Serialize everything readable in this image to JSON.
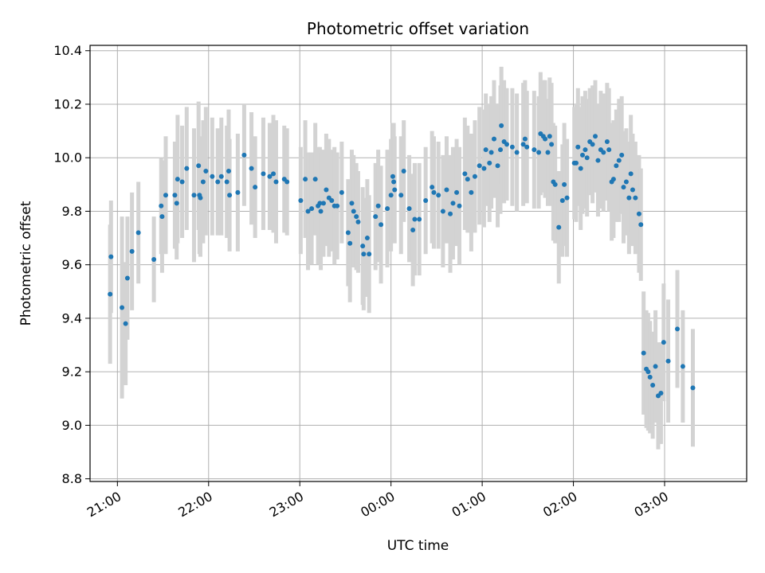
{
  "chart_data": {
    "type": "scatter",
    "title": "Photometric offset variation",
    "xlabel": "UTC time",
    "ylabel": "Photometric offset",
    "x_unit": "hours UTC (values past 24 are after midnight)",
    "xlim": [
      20.7,
      27.9
    ],
    "ylim": [
      8.79,
      10.42
    ],
    "x_ticks": [
      21,
      22,
      23,
      24,
      25,
      26,
      27
    ],
    "x_tick_labels": [
      "21:00",
      "22:00",
      "23:00",
      "00:00",
      "01:00",
      "02:00",
      "03:00"
    ],
    "y_ticks": [
      8.8,
      9.0,
      9.2,
      9.4,
      9.6,
      9.8,
      10.0,
      10.2,
      10.4
    ],
    "y_tick_labels": [
      "8.8",
      "9.0",
      "9.2",
      "9.4",
      "9.6",
      "9.8",
      "10.0",
      "10.2",
      "10.4"
    ],
    "grid": true,
    "marker_color": "#1f77b4",
    "errorbar_color": "#d3d3d3",
    "points": [
      [
        20.92,
        9.49,
        0.26
      ],
      [
        20.93,
        9.63,
        0.21
      ],
      [
        21.05,
        9.44,
        0.34
      ],
      [
        21.09,
        9.38,
        0.23
      ],
      [
        21.11,
        9.55,
        0.23
      ],
      [
        21.16,
        9.65,
        0.22
      ],
      [
        21.23,
        9.72,
        0.19
      ],
      [
        21.4,
        9.62,
        0.16
      ],
      [
        21.48,
        9.82,
        0.18
      ],
      [
        21.49,
        9.78,
        0.21
      ],
      [
        21.53,
        9.86,
        0.22
      ],
      [
        21.63,
        9.86,
        0.2
      ],
      [
        21.65,
        9.83,
        0.21
      ],
      [
        21.66,
        9.92,
        0.24
      ],
      [
        21.71,
        9.91,
        0.21
      ],
      [
        21.76,
        9.96,
        0.23
      ],
      [
        21.84,
        9.86,
        0.25
      ],
      [
        21.89,
        9.97,
        0.24
      ],
      [
        21.9,
        9.86,
        0.22
      ],
      [
        21.91,
        9.85,
        0.22
      ],
      [
        21.94,
        9.91,
        0.23
      ],
      [
        21.97,
        9.95,
        0.24
      ],
      [
        22.04,
        9.93,
        0.22
      ],
      [
        22.1,
        9.91,
        0.2
      ],
      [
        22.14,
        9.93,
        0.22
      ],
      [
        22.2,
        9.91,
        0.21
      ],
      [
        22.22,
        9.95,
        0.23
      ],
      [
        22.23,
        9.86,
        0.21
      ],
      [
        22.32,
        9.87,
        0.22
      ],
      [
        22.39,
        10.01,
        0.19
      ],
      [
        22.47,
        9.96,
        0.21
      ],
      [
        22.51,
        9.89,
        0.19
      ],
      [
        22.6,
        9.94,
        0.21
      ],
      [
        22.67,
        9.93,
        0.2
      ],
      [
        22.71,
        9.94,
        0.22
      ],
      [
        22.74,
        9.91,
        0.23
      ],
      [
        22.83,
        9.92,
        0.2
      ],
      [
        22.86,
        9.91,
        0.2
      ],
      [
        23.01,
        9.84,
        0.2
      ],
      [
        23.06,
        9.92,
        0.22
      ],
      [
        23.09,
        9.8,
        0.22
      ],
      [
        23.13,
        9.81,
        0.21
      ],
      [
        23.17,
        9.92,
        0.21
      ],
      [
        23.2,
        9.82,
        0.22
      ],
      [
        23.22,
        9.83,
        0.21
      ],
      [
        23.23,
        9.8,
        0.22
      ],
      [
        23.26,
        9.83,
        0.2
      ],
      [
        23.29,
        9.88,
        0.21
      ],
      [
        23.32,
        9.85,
        0.22
      ],
      [
        23.35,
        9.84,
        0.19
      ],
      [
        23.38,
        9.82,
        0.22
      ],
      [
        23.41,
        9.82,
        0.2
      ],
      [
        23.46,
        9.87,
        0.19
      ],
      [
        23.53,
        9.72,
        0.2
      ],
      [
        23.55,
        9.68,
        0.22
      ],
      [
        23.57,
        9.83,
        0.2
      ],
      [
        23.59,
        9.8,
        0.21
      ],
      [
        23.62,
        9.78,
        0.2
      ],
      [
        23.64,
        9.76,
        0.19
      ],
      [
        23.69,
        9.67,
        0.22
      ],
      [
        23.7,
        9.64,
        0.21
      ],
      [
        23.74,
        9.7,
        0.22
      ],
      [
        23.76,
        9.64,
        0.22
      ],
      [
        23.83,
        9.78,
        0.2
      ],
      [
        23.86,
        9.82,
        0.21
      ],
      [
        23.89,
        9.75,
        0.22
      ],
      [
        23.96,
        9.81,
        0.22
      ],
      [
        24.0,
        9.86,
        0.21
      ],
      [
        24.02,
        9.93,
        0.2
      ],
      [
        24.03,
        9.91,
        0.22
      ],
      [
        24.04,
        9.88,
        0.2
      ],
      [
        24.11,
        9.86,
        0.22
      ],
      [
        24.14,
        9.95,
        0.19
      ],
      [
        24.2,
        9.81,
        0.2
      ],
      [
        24.24,
        9.73,
        0.21
      ],
      [
        24.26,
        9.77,
        0.21
      ],
      [
        24.31,
        9.77,
        0.21
      ],
      [
        24.38,
        9.84,
        0.2
      ],
      [
        24.45,
        9.89,
        0.21
      ],
      [
        24.47,
        9.87,
        0.21
      ],
      [
        24.52,
        9.86,
        0.2
      ],
      [
        24.57,
        9.8,
        0.21
      ],
      [
        24.61,
        9.88,
        0.2
      ],
      [
        24.65,
        9.79,
        0.22
      ],
      [
        24.68,
        9.83,
        0.21
      ],
      [
        24.72,
        9.87,
        0.2
      ],
      [
        24.75,
        9.82,
        0.22
      ],
      [
        24.81,
        9.94,
        0.21
      ],
      [
        24.84,
        9.92,
        0.2
      ],
      [
        24.88,
        9.87,
        0.22
      ],
      [
        24.92,
        9.93,
        0.21
      ],
      [
        24.97,
        9.97,
        0.22
      ],
      [
        25.02,
        9.96,
        0.22
      ],
      [
        25.04,
        10.03,
        0.21
      ],
      [
        25.08,
        9.98,
        0.22
      ],
      [
        25.1,
        10.02,
        0.21
      ],
      [
        25.13,
        10.07,
        0.22
      ],
      [
        25.17,
        9.97,
        0.23
      ],
      [
        25.2,
        10.03,
        0.24
      ],
      [
        25.21,
        10.12,
        0.22
      ],
      [
        25.24,
        10.06,
        0.23
      ],
      [
        25.27,
        10.05,
        0.21
      ],
      [
        25.33,
        10.04,
        0.22
      ],
      [
        25.38,
        10.02,
        0.22
      ],
      [
        25.45,
        10.05,
        0.23
      ],
      [
        25.47,
        10.07,
        0.22
      ],
      [
        25.49,
        10.04,
        0.21
      ],
      [
        25.57,
        10.03,
        0.22
      ],
      [
        25.62,
        10.02,
        0.21
      ],
      [
        25.64,
        10.09,
        0.23
      ],
      [
        25.67,
        10.08,
        0.21
      ],
      [
        25.69,
        10.07,
        0.22
      ],
      [
        25.72,
        10.02,
        0.2
      ],
      [
        25.74,
        10.08,
        0.22
      ],
      [
        25.76,
        10.05,
        0.23
      ],
      [
        25.78,
        9.91,
        0.22
      ],
      [
        25.8,
        9.9,
        0.22
      ],
      [
        25.84,
        9.74,
        0.21
      ],
      [
        25.88,
        9.84,
        0.21
      ],
      [
        25.9,
        9.9,
        0.23
      ],
      [
        25.93,
        9.85,
        0.22
      ],
      [
        26.01,
        9.98,
        0.21
      ],
      [
        26.03,
        9.98,
        0.22
      ],
      [
        26.05,
        10.04,
        0.22
      ],
      [
        26.08,
        9.96,
        0.23
      ],
      [
        26.1,
        10.01,
        0.22
      ],
      [
        26.13,
        10.03,
        0.22
      ],
      [
        26.15,
        10.0,
        0.22
      ],
      [
        26.18,
        10.06,
        0.2
      ],
      [
        26.21,
        10.05,
        0.22
      ],
      [
        26.24,
        10.08,
        0.21
      ],
      [
        26.27,
        9.99,
        0.21
      ],
      [
        26.3,
        10.03,
        0.22
      ],
      [
        26.33,
        10.02,
        0.22
      ],
      [
        26.37,
        10.06,
        0.22
      ],
      [
        26.39,
        10.03,
        0.23
      ],
      [
        26.42,
        9.91,
        0.22
      ],
      [
        26.44,
        9.92,
        0.22
      ],
      [
        26.47,
        9.97,
        0.21
      ],
      [
        26.5,
        9.99,
        0.23
      ],
      [
        26.53,
        10.01,
        0.22
      ],
      [
        26.55,
        9.89,
        0.21
      ],
      [
        26.58,
        9.91,
        0.2
      ],
      [
        26.61,
        9.85,
        0.21
      ],
      [
        26.63,
        9.94,
        0.22
      ],
      [
        26.65,
        9.88,
        0.21
      ],
      [
        26.68,
        9.85,
        0.21
      ],
      [
        26.72,
        9.79,
        0.22
      ],
      [
        26.74,
        9.75,
        0.21
      ],
      [
        26.77,
        9.27,
        0.23
      ],
      [
        26.8,
        9.21,
        0.22
      ],
      [
        26.82,
        9.2,
        0.22
      ],
      [
        26.84,
        9.18,
        0.21
      ],
      [
        26.87,
        9.15,
        0.2
      ],
      [
        26.9,
        9.22,
        0.21
      ],
      [
        26.93,
        9.11,
        0.2
      ],
      [
        26.96,
        9.12,
        0.19
      ],
      [
        26.99,
        9.31,
        0.22
      ],
      [
        27.04,
        9.24,
        0.23
      ],
      [
        27.14,
        9.36,
        0.22
      ],
      [
        27.2,
        9.22,
        0.21
      ],
      [
        27.31,
        9.14,
        0.22
      ]
    ]
  }
}
